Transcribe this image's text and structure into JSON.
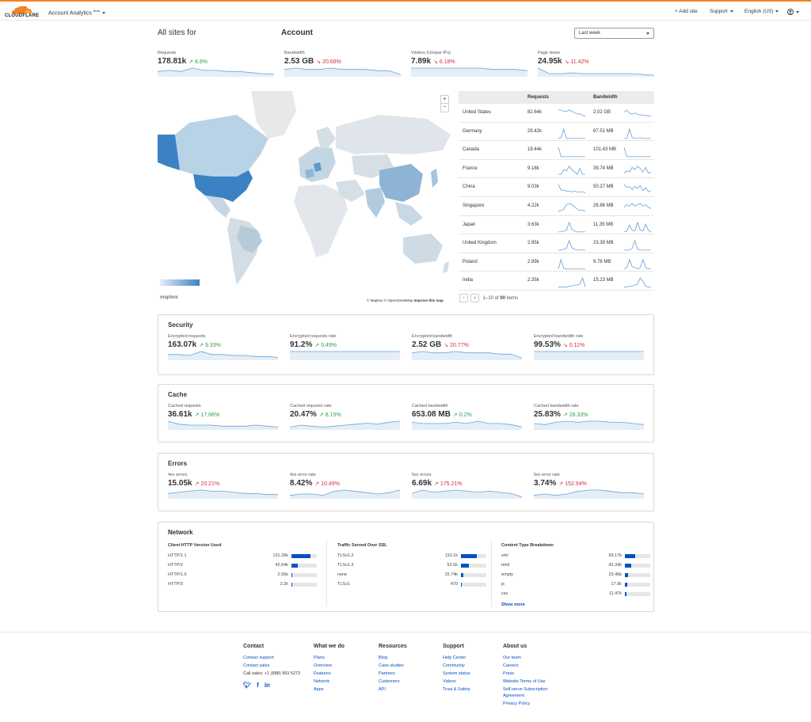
{
  "topbar": {
    "logo_text": "CLOUDFLARE",
    "nav_title": "Account Analytics",
    "beta": "Beta",
    "add_site": "+ Add site",
    "support": "Support",
    "language": "English (US)",
    "user_icon": "user-icon"
  },
  "header": {
    "title_left": "All sites for",
    "title_right": "Account",
    "range": "Last week"
  },
  "summary": [
    {
      "label": "Requests",
      "value": "178.81k",
      "delta": "8.8%",
      "dir": "up",
      "spark": [
        4,
        5,
        4,
        7,
        5,
        5,
        4,
        4,
        3,
        2,
        2
      ]
    },
    {
      "label": "Bandwidth",
      "value": "2.53 GB",
      "delta": "20.68%",
      "dir": "down",
      "spark": [
        5,
        6,
        5,
        5,
        6,
        5,
        5,
        5,
        4,
        4,
        1
      ]
    },
    {
      "label": "Visitors (Unique IPs)",
      "value": "7.89k",
      "delta": "6.18%",
      "dir": "down",
      "spark": [
        6,
        6,
        6,
        6,
        6,
        6,
        6,
        5,
        5,
        5,
        4
      ]
    },
    {
      "label": "Page views",
      "value": "24.95k",
      "delta": "11.42%",
      "dir": "down",
      "spark": [
        10,
        3,
        3,
        4,
        3,
        3,
        3,
        3,
        3,
        2,
        1
      ]
    }
  ],
  "map": {
    "zoom_in": "+",
    "zoom_out": "−",
    "attribution_1": "© Mapbox © OpenStreetMap",
    "attribution_2": "Improve this map",
    "mapbox_logo": "mapbox"
  },
  "country_table": {
    "col_requests": "Requests",
    "col_bandwidth": "Bandwidth",
    "rows": [
      {
        "country": "United States",
        "requests": "82.64k",
        "bandwidth": "2.02 GB",
        "sr": [
          8,
          8,
          7,
          7,
          8,
          7,
          6,
          5,
          5,
          4,
          3
        ],
        "sb": [
          8,
          10,
          7,
          6,
          7,
          6,
          5,
          5,
          5,
          4,
          4
        ]
      },
      {
        "country": "Germany",
        "requests": "29.42k",
        "bandwidth": "67.51 MB",
        "sr": [
          1,
          2,
          12,
          1,
          1,
          1,
          1,
          1,
          1,
          1,
          1
        ],
        "sb": [
          1,
          1,
          12,
          2,
          1,
          1,
          2,
          1,
          1,
          1,
          1
        ]
      },
      {
        "country": "Canada",
        "requests": "18.44k",
        "bandwidth": "101.43 MB",
        "sr": [
          12,
          1,
          1,
          1,
          1,
          1,
          1,
          1,
          1,
          1,
          1
        ],
        "sb": [
          12,
          1,
          1,
          1,
          1,
          1,
          1,
          1,
          1,
          1,
          1
        ]
      },
      {
        "country": "France",
        "requests": "9.18k",
        "bandwidth": "39.74 MB",
        "sr": [
          2,
          2,
          6,
          5,
          9,
          6,
          4,
          2,
          7,
          2,
          2
        ],
        "sb": [
          3,
          5,
          4,
          8,
          6,
          9,
          7,
          4,
          8,
          3,
          4
        ]
      },
      {
        "country": "China",
        "requests": "9.03k",
        "bandwidth": "50.27 MB",
        "sr": [
          11,
          5,
          5,
          4,
          4,
          3,
          4,
          3,
          3,
          3,
          2
        ],
        "sb": [
          10,
          7,
          8,
          5,
          8,
          6,
          9,
          4,
          7,
          3,
          4
        ]
      },
      {
        "country": "Singapore",
        "requests": "4.22k",
        "bandwidth": "26.86 MB",
        "sr": [
          2,
          3,
          4,
          8,
          9,
          8,
          6,
          4,
          3,
          3,
          2
        ],
        "sb": [
          5,
          7,
          6,
          8,
          6,
          7,
          8,
          6,
          7,
          5,
          4
        ]
      },
      {
        "country": "Japan",
        "requests": "3.63k",
        "bandwidth": "11.35 MB",
        "sr": [
          1,
          1,
          2,
          3,
          12,
          4,
          2,
          1,
          1,
          1,
          1
        ],
        "sb": [
          1,
          2,
          9,
          3,
          2,
          12,
          3,
          2,
          10,
          3,
          1
        ]
      },
      {
        "country": "United Kingdom",
        "requests": "2.95k",
        "bandwidth": "23.39 MB",
        "sr": [
          1,
          1,
          2,
          3,
          12,
          4,
          2,
          1,
          1,
          1,
          1
        ],
        "sb": [
          1,
          1,
          1,
          3,
          12,
          2,
          1,
          1,
          1,
          1,
          1
        ]
      },
      {
        "country": "Poland",
        "requests": "2.89k",
        "bandwidth": "9.76 MB",
        "sr": [
          1,
          12,
          2,
          1,
          1,
          1,
          1,
          1,
          1,
          1,
          1
        ],
        "sb": [
          1,
          2,
          9,
          3,
          2,
          1,
          2,
          9,
          2,
          1,
          1
        ]
      },
      {
        "country": "India",
        "requests": "2.35k",
        "bandwidth": "15.23 MB",
        "sr": [
          1,
          1,
          1,
          1,
          2,
          2,
          3,
          3,
          4,
          10,
          1
        ],
        "sb": [
          1,
          1,
          2,
          2,
          3,
          4,
          10,
          7,
          2,
          1,
          1
        ]
      }
    ],
    "pager_range": "1–10",
    "pager_of": "of",
    "pager_total": "90",
    "pager_items": "items"
  },
  "security": {
    "title": "Security",
    "metrics": [
      {
        "label": "Encrypted requests",
        "value": "163.07k",
        "delta": "9.33%",
        "dir": "up",
        "spark": [
          5,
          5,
          4,
          8,
          5,
          5,
          4,
          4,
          3,
          3,
          2
        ]
      },
      {
        "label": "Encrypted requests rate",
        "value": "91.2%",
        "delta": "0.49%",
        "dir": "up",
        "spark": [
          8,
          8,
          8,
          8,
          8,
          8,
          8,
          8,
          8,
          8,
          8
        ]
      },
      {
        "label": "Encrypted bandwidth",
        "value": "2.52 GB",
        "delta": "20.77%",
        "dir": "down",
        "spark": [
          5,
          6,
          5,
          5,
          6,
          5,
          5,
          5,
          4,
          4,
          1
        ]
      },
      {
        "label": "Encrypted bandwidth rate",
        "value": "99.53%",
        "delta": "0.11%",
        "dir": "down",
        "spark": [
          8,
          8,
          8,
          8,
          8,
          8,
          8,
          8,
          8,
          8,
          8
        ]
      }
    ]
  },
  "cache": {
    "title": "Cache",
    "metrics": [
      {
        "label": "Cached requests",
        "value": "36.61k",
        "delta": "17.66%",
        "dir": "up",
        "spark": [
          8,
          5,
          4,
          4,
          4,
          3,
          3,
          3,
          4,
          3,
          2
        ]
      },
      {
        "label": "Cached requests rate",
        "value": "20.47%",
        "delta": "8.15%",
        "dir": "up",
        "spark": [
          2,
          4,
          3,
          2,
          3,
          4,
          5,
          6,
          5,
          7,
          8
        ]
      },
      {
        "label": "Cached bandwidth",
        "value": "653.08 MB",
        "delta": "0.2%",
        "dir": "up",
        "spark": [
          6,
          5,
          5,
          5,
          6,
          5,
          7,
          5,
          5,
          4,
          2
        ]
      },
      {
        "label": "Cached bandwidth rate",
        "value": "25.83%",
        "delta": "26.33%",
        "dir": "up",
        "spark": [
          5,
          4,
          6,
          7,
          6,
          7,
          7,
          6,
          6,
          5,
          4
        ]
      }
    ]
  },
  "errors": {
    "title": "Errors",
    "metrics": [
      {
        "label": "4xx errors",
        "value": "15.05k",
        "delta": "20.21%",
        "dir": "upbad",
        "spark": [
          4,
          5,
          6,
          7,
          6,
          6,
          5,
          4,
          4,
          3,
          3
        ]
      },
      {
        "label": "4xx error rate",
        "value": "8.42%",
        "delta": "10.49%",
        "dir": "upbad",
        "spark": [
          2,
          3,
          3,
          2,
          5,
          6,
          5,
          4,
          3,
          4,
          6
        ]
      },
      {
        "label": "5xx errors",
        "value": "6.69k",
        "delta": "175.21%",
        "dir": "upbad",
        "spark": [
          4,
          7,
          5,
          6,
          7,
          6,
          5,
          6,
          5,
          4,
          1
        ]
      },
      {
        "label": "5xx error rate",
        "value": "3.74%",
        "delta": "152.94%",
        "dir": "upbad",
        "spark": [
          2,
          3,
          2,
          3,
          5,
          6,
          6,
          5,
          4,
          4,
          3
        ]
      }
    ]
  },
  "network": {
    "title": "Network",
    "columns": [
      {
        "title": "Client HTTP Version Used",
        "rows": [
          {
            "label": "HTTP/1.1",
            "value": "131.39k",
            "pct": 0.74
          },
          {
            "label": "HTTP/2",
            "value": "42.64k",
            "pct": 0.24
          },
          {
            "label": "HTTP/1.0",
            "value": "2.56k",
            "pct": 0.02
          },
          {
            "label": "HTTP/3",
            "value": "2.2k",
            "pct": 0.015
          }
        ]
      },
      {
        "title": "Traffic Served Over SSL",
        "rows": [
          {
            "label": "TLSv1.2",
            "value": "110.1k",
            "pct": 0.62
          },
          {
            "label": "TLSv1.3",
            "value": "52.5k",
            "pct": 0.3
          },
          {
            "label": "none",
            "value": "15.74k",
            "pct": 0.09
          },
          {
            "label": "TLSv1",
            "value": "470",
            "pct": 0.01
          }
        ]
      },
      {
        "title": "Content Type Breakdown",
        "rows": [
          {
            "label": "xml",
            "value": "69.17k",
            "pct": 0.4
          },
          {
            "label": "html",
            "value": "43.34k",
            "pct": 0.25
          },
          {
            "label": "empty",
            "value": "23.46k",
            "pct": 0.13
          },
          {
            "label": "js",
            "value": "17.9k",
            "pct": 0.1
          },
          {
            "label": "css",
            "value": "11.47k",
            "pct": 0.065
          }
        ]
      }
    ],
    "show_more": "Show more"
  },
  "footer": {
    "columns": [
      {
        "title": "Contact",
        "links": [
          "Contact support",
          "Contact sales"
        ],
        "plain": [
          "Call sales: +1 (888) 993 5273"
        ]
      },
      {
        "title": "What we do",
        "links": [
          "Plans",
          "Overview",
          "Features",
          "Network",
          "Apps"
        ]
      },
      {
        "title": "Resources",
        "links": [
          "Blog",
          "Case studies",
          "Partners",
          "Customers",
          "API"
        ]
      },
      {
        "title": "Support",
        "links": [
          "Help Center",
          "Community",
          "System status",
          "Videos",
          "Trust & Safety"
        ]
      },
      {
        "title": "About us",
        "links": [
          "Our team",
          "Careers",
          "Press",
          "Website Terms of Use",
          "Self-serve Subscription Agreement",
          "Privacy Policy"
        ]
      }
    ],
    "social": [
      "twitter-icon",
      "facebook-icon",
      "linkedin-icon"
    ]
  },
  "colors": {
    "accent": "#f6821f",
    "link": "#0051c3",
    "up": "#2d9e4a",
    "down": "#d0303f",
    "line": "#6aa3d8"
  }
}
